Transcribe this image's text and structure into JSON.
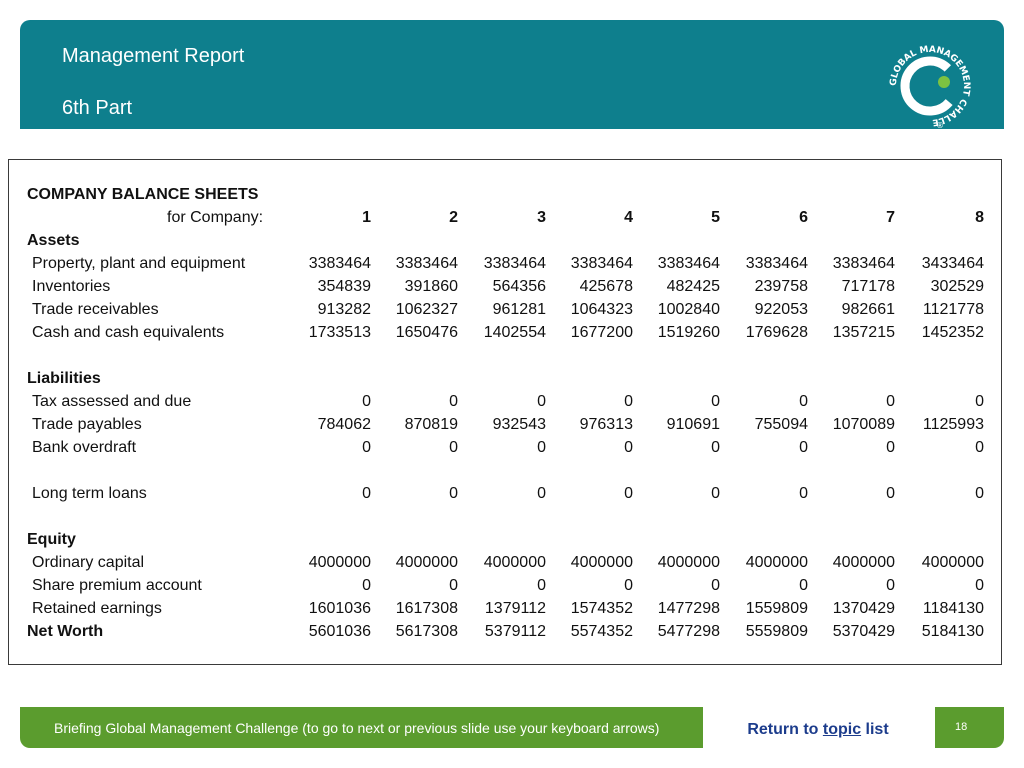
{
  "header": {
    "title": "Management Report",
    "subtitle": "6th Part",
    "logo": {
      "letters": "GC",
      "text": "GLOBAL MANAGEMENT CHALLENGE",
      "mark": "®",
      "colors": {
        "white": "#ffffff",
        "green": "#7cc242"
      }
    }
  },
  "sheet": {
    "title": "COMPANY BALANCE SHEETS",
    "company_label": "for Company:",
    "companies": [
      "1",
      "2",
      "3",
      "4",
      "5",
      "6",
      "7",
      "8"
    ],
    "sections": [
      {
        "heading": "Assets",
        "rows": [
          {
            "label": "Property, plant and equipment",
            "values": [
              "3383464",
              "3383464",
              "3383464",
              "3383464",
              "3383464",
              "3383464",
              "3383464",
              "3433464"
            ]
          },
          {
            "label": "Inventories",
            "values": [
              "354839",
              "391860",
              "564356",
              "425678",
              "482425",
              "239758",
              "717178",
              "302529"
            ]
          },
          {
            "label": "Trade receivables",
            "values": [
              "913282",
              "1062327",
              "961281",
              "1064323",
              "1002840",
              "922053",
              "982661",
              "1121778"
            ]
          },
          {
            "label": "Cash and cash equivalents",
            "values": [
              "1733513",
              "1650476",
              "1402554",
              "1677200",
              "1519260",
              "1769628",
              "1357215",
              "1452352"
            ]
          }
        ]
      },
      {
        "heading": "Liabilities",
        "rows": [
          {
            "label": "Tax assessed and due",
            "values": [
              "0",
              "0",
              "0",
              "0",
              "0",
              "0",
              "0",
              "0"
            ]
          },
          {
            "label": "Trade payables",
            "values": [
              "784062",
              "870819",
              "932543",
              "976313",
              "910691",
              "755094",
              "1070089",
              "1125993"
            ]
          },
          {
            "label": "Bank overdraft",
            "values": [
              "0",
              "0",
              "0",
              "0",
              "0",
              "0",
              "0",
              "0"
            ]
          },
          {
            "label": "Long term loans",
            "values": [
              "0",
              "0",
              "0",
              "0",
              "0",
              "0",
              "0",
              "0"
            ]
          }
        ]
      },
      {
        "heading": "Equity",
        "rows": [
          {
            "label": "Ordinary capital",
            "values": [
              "4000000",
              "4000000",
              "4000000",
              "4000000",
              "4000000",
              "4000000",
              "4000000",
              "4000000"
            ]
          },
          {
            "label": "Share premium account",
            "values": [
              "0",
              "0",
              "0",
              "0",
              "0",
              "0",
              "0",
              "0"
            ]
          },
          {
            "label": "Retained earnings",
            "values": [
              "1601036",
              "1617308",
              "1379112",
              "1574352",
              "1477298",
              "1559809",
              "1370429",
              "1184130"
            ]
          }
        ]
      }
    ],
    "net_worth": {
      "label": "Net Worth",
      "values": [
        "5601036",
        "5617308",
        "5379112",
        "5574352",
        "5477298",
        "5559809",
        "5370429",
        "5184130"
      ]
    }
  },
  "footer": {
    "text": "Briefing Global Management Challenge (to go to next or previous slide use your keyboard arrows)",
    "return_prefix": "Return to ",
    "return_link": "topic",
    "return_suffix": " list",
    "page_number": "18"
  }
}
